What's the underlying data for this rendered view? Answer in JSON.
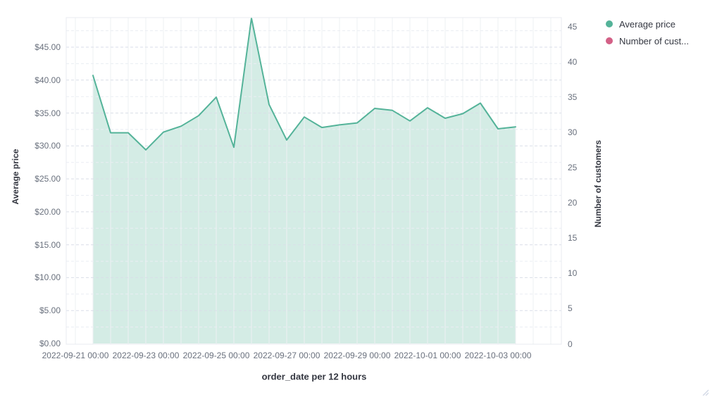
{
  "chart_data": {
    "type": "area",
    "title": "",
    "xlabel": "order_date per 12 hours",
    "grid": true,
    "legend_position": "top-right",
    "left_axis": {
      "title": "Average price",
      "tick_labels": [
        "$0.00",
        "$5.00",
        "$10.00",
        "$15.00",
        "$20.00",
        "$25.00",
        "$30.00",
        "$35.00",
        "$40.00",
        "$45.00"
      ],
      "tick_values": [
        0,
        5,
        10,
        15,
        20,
        25,
        30,
        35,
        40,
        45
      ],
      "range": [
        0,
        49.5
      ]
    },
    "right_axis": {
      "title": "Number of customers",
      "tick_labels": [
        "0",
        "5",
        "10",
        "15",
        "20",
        "25",
        "30",
        "35",
        "40",
        "45"
      ],
      "tick_values": [
        0,
        5,
        10,
        15,
        20,
        25,
        30,
        35,
        40,
        45
      ],
      "range": [
        0,
        45
      ]
    },
    "x_axis": {
      "tick_labels": [
        "2022-09-21 00:00",
        "2022-09-23 00:00",
        "2022-09-25 00:00",
        "2022-09-27 00:00",
        "2022-09-29 00:00",
        "2022-10-01 00:00",
        "2022-10-03 00:00"
      ],
      "interval": "12 hours"
    },
    "series": [
      {
        "name": "Average price",
        "type": "area",
        "axis": "left",
        "color": "#54b399",
        "fill_opacity": 0.25,
        "x": [
          "2022-09-21 12:00",
          "2022-09-22 00:00",
          "2022-09-22 12:00",
          "2022-09-23 00:00",
          "2022-09-23 12:00",
          "2022-09-24 00:00",
          "2022-09-24 12:00",
          "2022-09-25 00:00",
          "2022-09-25 12:00",
          "2022-09-26 00:00",
          "2022-09-26 12:00",
          "2022-09-27 00:00",
          "2022-09-27 12:00",
          "2022-09-28 00:00",
          "2022-09-28 12:00",
          "2022-09-29 00:00",
          "2022-09-29 12:00",
          "2022-09-30 00:00",
          "2022-09-30 12:00",
          "2022-10-01 00:00",
          "2022-10-01 12:00",
          "2022-10-02 00:00",
          "2022-10-02 12:00",
          "2022-10-03 00:00",
          "2022-10-03 12:00"
        ],
        "values": [
          40.7,
          32.0,
          32.0,
          29.4,
          32.1,
          33.0,
          34.6,
          37.4,
          29.8,
          49.4,
          36.3,
          30.9,
          34.4,
          32.8,
          33.2,
          33.5,
          35.7,
          35.4,
          33.8,
          35.8,
          34.2,
          34.9,
          36.5,
          32.6,
          32.9
        ]
      },
      {
        "name": "Number of cust...",
        "type": "area",
        "axis": "right",
        "color": "#d36086",
        "values": []
      }
    ]
  },
  "legend": {
    "items": [
      {
        "label": "Average price",
        "color": "#54b399"
      },
      {
        "label": "Number of cust...",
        "color": "#d36086"
      }
    ]
  },
  "colors": {
    "series_green": "#54b399",
    "series_pink": "#d36086",
    "tick_text": "#69707d",
    "axis_title_text": "#343741",
    "grid_vertical": "#eef0f3",
    "grid_horizontal": "#d9dee8",
    "grid_horizontal_minor": "#eaedf3",
    "plot_border": "#e8ebf0"
  }
}
